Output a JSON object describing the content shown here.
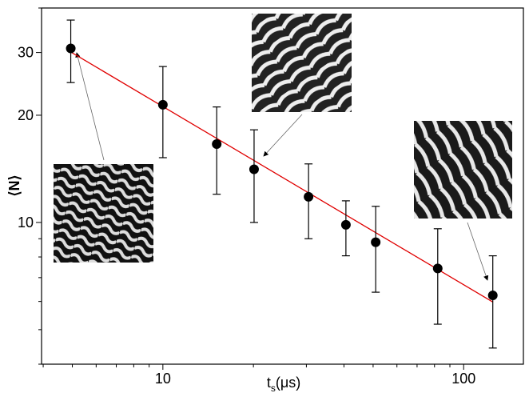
{
  "chart_data": {
    "type": "scatter",
    "ylabel": "⟨N⟩",
    "xlabel_parts": [
      "t",
      "s",
      "(μs)"
    ],
    "log_x": true,
    "log_y": true,
    "xlim": [
      3.95,
      158
    ],
    "ylim": [
      4,
      40
    ],
    "xticks": [
      10,
      100
    ],
    "yticks": [
      10,
      20,
      30
    ],
    "xminor": [
      4,
      5,
      6,
      7,
      8,
      9,
      20,
      30,
      40,
      50,
      60,
      70,
      80,
      90
    ],
    "yminor": [
      4,
      5,
      6,
      7,
      8,
      9,
      40
    ],
    "x": [
      4.94,
      10,
      15.1,
      20.1,
      30.5,
      40.6,
      51,
      82,
      125
    ],
    "values": [
      30.8,
      21.4,
      16.6,
      14.1,
      11.8,
      9.85,
      8.8,
      7.43,
      6.24
    ],
    "y_high": [
      37,
      27.4,
      21.1,
      18.2,
      14.6,
      11.5,
      11.1,
      9.6,
      8.06
    ],
    "y_low": [
      24.7,
      15.2,
      12.0,
      10,
      9.0,
      8.06,
      6.37,
      5.18,
      4.44
    ],
    "color": "#000000",
    "fit": {
      "x": [
        4.94,
        125
      ],
      "y": [
        30.1,
        5.98
      ],
      "color": "#e00000"
    }
  }
}
